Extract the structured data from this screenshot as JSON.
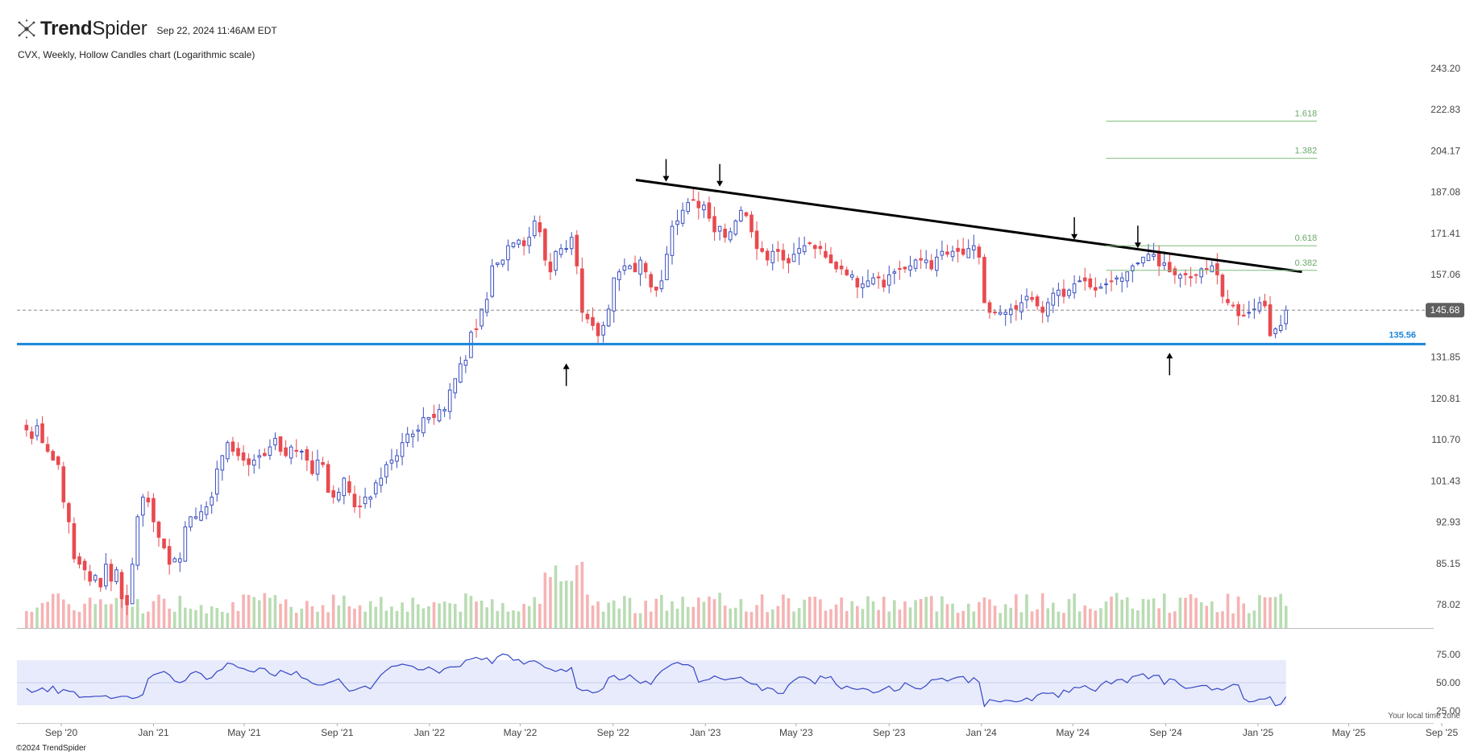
{
  "header": {
    "brand": "TrendSpider",
    "brand_bold": "Trend",
    "brand_light": "Spider",
    "timestamp": "Sep 22, 2024 11:46AM EDT"
  },
  "subtitle": "CVX, Weekly, Hollow Candles chart (Logarithmic scale)",
  "footer": {
    "copyright": "©2024 TrendSpider",
    "local_time_note": "Your local time zone"
  },
  "colors": {
    "up": "#3b4fbf",
    "down": "#e84a4f",
    "volume_up": "#b9dcb3",
    "volume_down": "#f6b3b4",
    "support": "#1a86d9",
    "trendline": "#000000",
    "fib": "#7dbf7a",
    "rsi_line": "#3546c5",
    "rsi_band": "#e8ebfb",
    "price_tag_bg": "#5f5f5f"
  },
  "chart_data": {
    "type": "candlestick",
    "symbol": "CVX",
    "interval": "Weekly",
    "style": "Hollow Candles",
    "scale": "log",
    "y_ticks": [
      243.2,
      222.83,
      204.17,
      187.08,
      171.41,
      157.06,
      145.68,
      131.85,
      120.81,
      110.7,
      101.43,
      92.93,
      85.15,
      78.02
    ],
    "y_tick_labels": [
      "243.20",
      "222.83",
      "204.17",
      "187.08",
      "171.41",
      "157.06",
      "145.68",
      "131.85",
      "120.81",
      "110.70",
      "101.43",
      "92.93",
      "85.15",
      "78.02"
    ],
    "x_ticks": [
      "Sep '20",
      "Jan '21",
      "May '21",
      "Sep '21",
      "Jan '22",
      "May '22",
      "Sep '22",
      "Jan '23",
      "May '23",
      "Sep '23",
      "Jan '24",
      "May '24",
      "Sep '24",
      "Jan '25",
      "May '25",
      "Sep '25"
    ],
    "last_price": 145.68,
    "last_price_label": "145.68",
    "support_level": 135.56,
    "support_label": "135.56",
    "fib_levels": [
      {
        "label": "1.618",
        "value": 217.5
      },
      {
        "label": "1.382",
        "value": 201.0
      },
      {
        "label": "0.618",
        "value": 167.0
      },
      {
        "label": "0.382",
        "value": 158.5
      }
    ],
    "trendline": {
      "start": {
        "date": "2022-10-01",
        "price": 192
      },
      "end": {
        "date": "2025-02-28",
        "price": 158
      }
    },
    "arrows": [
      {
        "date": "2022-11-10",
        "dir": "down",
        "price": 190
      },
      {
        "date": "2023-01-20",
        "dir": "down",
        "price": 188
      },
      {
        "date": "2024-05-03",
        "dir": "down",
        "price": 168
      },
      {
        "date": "2024-07-26",
        "dir": "down",
        "price": 165
      },
      {
        "date": "2022-07-01",
        "dir": "up",
        "price": 131
      },
      {
        "date": "2024-09-06",
        "dir": "up",
        "price": 134
      }
    ],
    "closes": [
      113,
      111,
      114,
      110,
      108,
      106,
      105,
      97,
      93,
      86,
      85,
      84,
      82,
      83,
      81,
      85,
      82,
      84,
      79,
      78,
      85,
      94,
      98,
      97,
      93,
      90,
      88,
      85,
      86,
      86,
      92,
      94,
      94,
      95,
      96,
      98,
      104,
      107,
      110,
      108,
      107,
      106,
      105,
      106,
      107,
      107,
      109,
      111,
      108,
      107,
      109,
      108,
      108,
      106,
      103,
      106,
      105,
      99,
      98,
      99,
      102,
      99,
      96,
      96,
      98,
      98,
      101,
      102,
      105,
      106,
      107,
      110,
      112,
      112,
      113,
      116,
      116,
      116,
      118,
      118,
      123,
      126,
      130,
      131,
      139,
      140,
      146,
      149,
      160,
      161,
      162,
      167,
      168,
      169,
      167,
      170,
      176,
      172,
      162,
      158,
      165,
      166,
      166,
      170,
      160,
      145,
      143,
      141,
      138,
      141,
      146,
      156,
      158,
      160,
      160,
      158,
      162,
      158,
      153,
      152,
      155,
      164,
      174,
      176,
      180,
      183,
      184,
      181,
      182,
      177,
      172,
      174,
      170,
      172,
      176,
      180,
      178,
      172,
      166,
      165,
      162,
      165,
      165,
      162,
      161,
      164,
      166,
      167,
      168,
      166,
      166,
      163,
      161,
      159,
      159,
      157,
      157,
      153,
      154,
      155,
      156,
      156,
      153,
      157,
      158,
      159,
      159,
      160,
      162,
      162,
      162,
      159,
      163,
      165,
      164,
      165,
      165,
      164,
      166,
      167,
      163,
      148,
      145,
      145,
      145,
      145,
      146,
      146,
      148,
      150,
      149,
      147,
      145,
      148,
      151,
      152,
      150,
      152,
      154,
      155,
      155,
      153,
      152,
      153,
      154,
      155,
      156,
      156,
      158,
      160,
      161,
      163,
      164,
      164,
      160,
      161,
      158,
      157,
      157,
      157,
      156,
      157,
      159,
      159,
      160,
      157,
      150,
      148,
      147,
      144,
      144,
      145,
      146,
      148,
      147,
      138,
      140,
      141,
      145.68
    ],
    "rsi": {
      "title": "",
      "y_ticks": [
        75,
        50,
        25
      ],
      "y_tick_labels": [
        "75.00",
        "50.00",
        "25.00"
      ],
      "band": [
        30,
        70
      ],
      "values": [
        45.0,
        41.5,
        43.0,
        45.5,
        42.0,
        47.0,
        40.5,
        44.0,
        42.5,
        42.0,
        37.0,
        37.5,
        37.5,
        38.0,
        38.0,
        38.5,
        36.0,
        37.0,
        38.0,
        38.0,
        36.0,
        37.0,
        39.5,
        53.5,
        57.0,
        58.5,
        60.0,
        57.0,
        51.5,
        50.0,
        52.0,
        58.0,
        60.0,
        58.0,
        53.0,
        54.5,
        60.0,
        62.0,
        67.5,
        66.5,
        63.5,
        62.5,
        60.5,
        59.5,
        63.0,
        62.5,
        58.0,
        56.0,
        61.0,
        59.0,
        57.0,
        60.0,
        54.5,
        53.0,
        49.5,
        48.0,
        48.0,
        50.0,
        51.5,
        53.5,
        47.5,
        42.5,
        43.5,
        45.5,
        47.0,
        44.5,
        51.0,
        57.0,
        61.0,
        64.5,
        65.0,
        66.5,
        65.5,
        64.5,
        61.5,
        61.5,
        64.0,
        61.5,
        58.5,
        62.5,
        64.0,
        64.0,
        64.5,
        70.0,
        71.0,
        72.5,
        70.5,
        72.0,
        67.0,
        73.0,
        75.5,
        74.5,
        70.0,
        70.5,
        66.5,
        69.0,
        69.5,
        67.0,
        63.5,
        62.0,
        60.0,
        62.0,
        60.0,
        63.5,
        45.5,
        43.0,
        43.5,
        41.0,
        42.0,
        45.0,
        54.5,
        56.5,
        52.5,
        53.5,
        57.0,
        53.0,
        49.5,
        51.5,
        48.5,
        55.5,
        60.5,
        63.5,
        66.5,
        68.0,
        66.0,
        66.0,
        63.5,
        50.5,
        52.0,
        53.0,
        56.0,
        54.0,
        52.5,
        53.5,
        54.0,
        55.0,
        51.5,
        49.0,
        48.5,
        43.0,
        45.5,
        44.5,
        40.5,
        40.5,
        48.0,
        52.0,
        55.0,
        55.0,
        53.0,
        49.0,
        56.0,
        54.0,
        55.5,
        48.5,
        44.5,
        47.0,
        45.0,
        44.0,
        45.0,
        44.0,
        41.0,
        42.0,
        44.5,
        47.0,
        42.5,
        44.0,
        50.0,
        47.5,
        45.0,
        44.5,
        47.5,
        52.5,
        53.0,
        54.0,
        51.5,
        53.5,
        55.0,
        55.5,
        50.0,
        54.5,
        50.5,
        29.0,
        35.0,
        34.0,
        33.0,
        34.5,
        34.0,
        33.0,
        34.0,
        36.5,
        34.0,
        39.0,
        41.0,
        40.5,
        41.0,
        37.0,
        43.5,
        41.5,
        46.0,
        45.5,
        47.5,
        44.5,
        42.5,
        48.0,
        51.5,
        49.0,
        52.5,
        53.0,
        50.0,
        55.5,
        56.5,
        58.0,
        53.5,
        56.5,
        56.5,
        48.5,
        53.5,
        52.5,
        48.0,
        45.0,
        45.5,
        46.5,
        47.5,
        47.5,
        43.5,
        45.0,
        43.5,
        46.0,
        48.5,
        48.0,
        36.0,
        33.0,
        33.5,
        35.5,
        35.5,
        37.5,
        29.5,
        31.0,
        37.5
      ]
    }
  }
}
